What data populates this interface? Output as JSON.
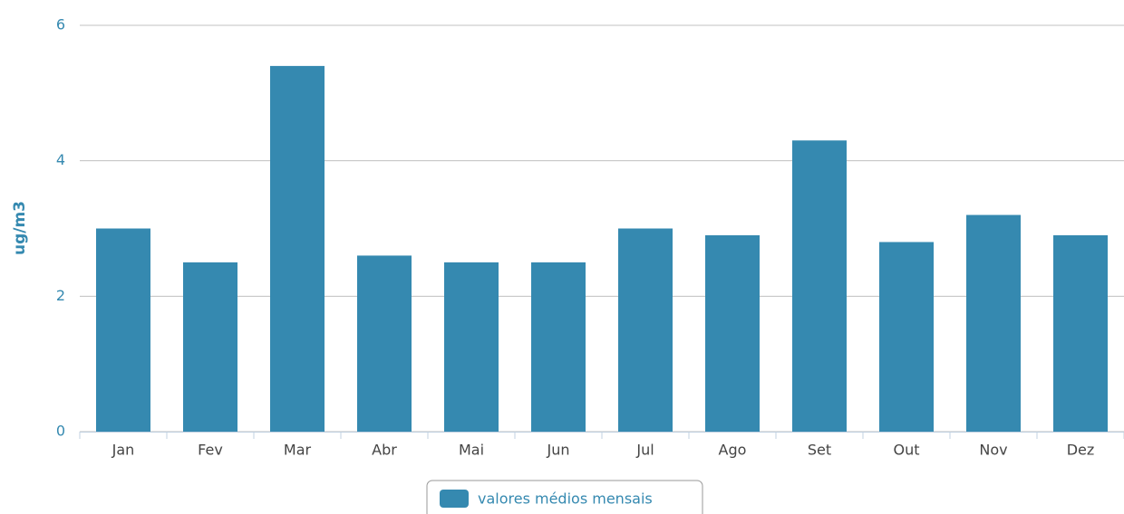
{
  "chart_data": {
    "type": "bar",
    "y_label": "ug/m3",
    "categories": [
      "Jan",
      "Fev",
      "Mar",
      "Abr",
      "Mai",
      "Jun",
      "Jul",
      "Ago",
      "Set",
      "Out",
      "Nov",
      "Dez"
    ],
    "series": [
      {
        "name": "valores médios mensais",
        "color": "#3589b0",
        "values": [
          3.0,
          2.5,
          5.4,
          2.6,
          2.5,
          2.5,
          3.0,
          2.9,
          4.3,
          2.8,
          3.2,
          2.9
        ]
      }
    ],
    "ylim": [
      0,
      6
    ],
    "yticks": [
      0,
      2,
      4,
      6
    ],
    "grid": true
  }
}
